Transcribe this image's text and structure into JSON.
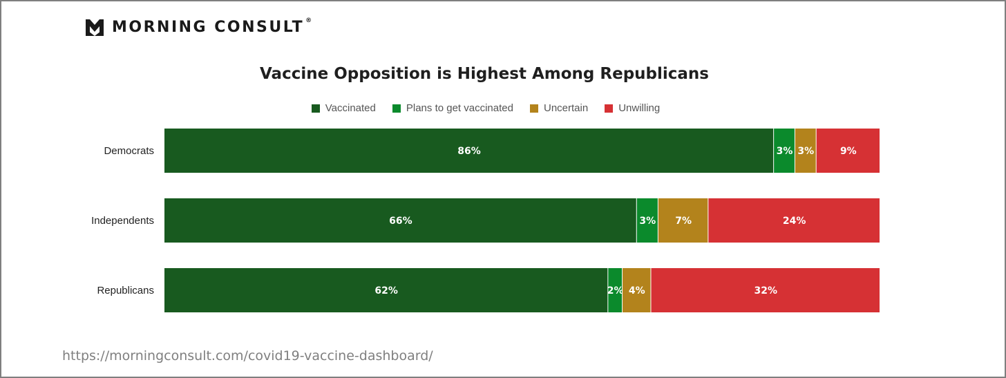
{
  "brand": {
    "name": "MORNING CONSULT",
    "registered": "®"
  },
  "source_url": "https://morningconsult.com/covid19-vaccine-dashboard/",
  "chart_data": {
    "type": "bar",
    "orientation": "horizontal",
    "stacked": true,
    "normalized": true,
    "title": "Vaccine Opposition is Highest Among Republicans",
    "legend_position": "top",
    "grid": false,
    "categories": [
      "Democrats",
      "Independents",
      "Republicans"
    ],
    "series": [
      {
        "name": "Vaccinated",
        "color": "#185a1f",
        "values": [
          86,
          66,
          62
        ],
        "labels": [
          "86%",
          "66%",
          "62%"
        ]
      },
      {
        "name": "Plans to get vaccinated",
        "color": "#0b8a2c",
        "values": [
          3,
          3,
          2
        ],
        "labels": [
          "3%",
          "3%",
          "2%"
        ]
      },
      {
        "name": "Uncertain",
        "color": "#b3831c",
        "values": [
          3,
          7,
          4
        ],
        "labels": [
          "3%",
          "7%",
          "4%"
        ]
      },
      {
        "name": "Unwilling",
        "color": "#d63134",
        "values": [
          9,
          24,
          32
        ],
        "labels": [
          "9%",
          "24%",
          "32%"
        ]
      }
    ]
  }
}
